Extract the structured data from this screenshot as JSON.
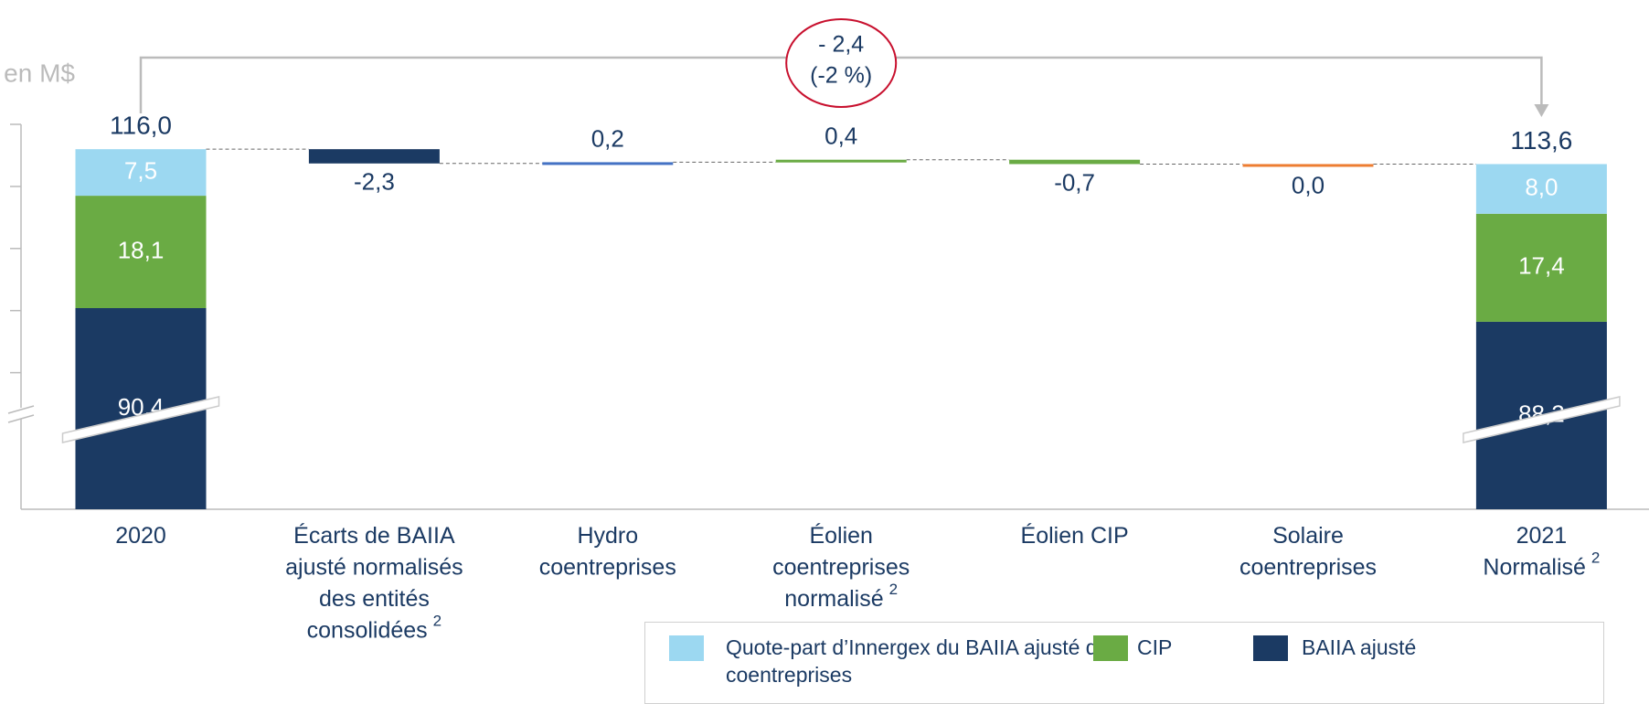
{
  "chart_data": {
    "type": "waterfall",
    "unit_label": "en M$",
    "categories": [
      [
        "2020"
      ],
      [
        "Écarts de BAIIA",
        "ajusté normalisés",
        "des entités",
        "consolidées"
      ],
      [
        "Hydro",
        "coentreprises"
      ],
      [
        "Éolien",
        "coentreprises",
        "normalisé"
      ],
      [
        "Éolien CIP"
      ],
      [
        "Solaire",
        "coentreprises"
      ],
      [
        "2021",
        "Normalisé"
      ]
    ],
    "category_notes": [
      null,
      "2",
      null,
      "2",
      null,
      null,
      "2"
    ],
    "series": [
      {
        "name": "BAIIA ajusté",
        "color": "#1b3a63",
        "values": [
          90.4,
          null,
          null,
          null,
          null,
          null,
          88.2
        ],
        "value_labels": [
          "90,4",
          null,
          null,
          null,
          null,
          null,
          "88,2"
        ]
      },
      {
        "name": "CIP",
        "color": "#6aab44",
        "values": [
          18.1,
          null,
          null,
          null,
          null,
          null,
          17.4
        ],
        "value_labels": [
          "18,1",
          null,
          null,
          null,
          null,
          null,
          "17,4"
        ]
      },
      {
        "name": "Quote-part d’Innergex du BAIIA ajusté des coentreprises",
        "color": "#9cd8f1",
        "values": [
          7.5,
          null,
          null,
          null,
          null,
          null,
          8.0
        ],
        "value_labels": [
          "7,5",
          null,
          null,
          null,
          null,
          null,
          "8,0"
        ]
      }
    ],
    "totals": {
      "values": [
        116.0,
        null,
        null,
        null,
        null,
        null,
        113.6
      ],
      "value_labels": [
        "116,0",
        null,
        null,
        null,
        null,
        null,
        "113,6"
      ]
    },
    "changes": {
      "values": [
        null,
        -2.3,
        0.2,
        0.4,
        -0.7,
        0.0,
        null
      ],
      "value_labels": [
        null,
        "-2,3",
        "0,2",
        "0,4",
        "-0,7",
        "0,0",
        null
      ],
      "colors": [
        null,
        "#1b3a63",
        "#4472c4",
        "#6aab44",
        "#6aab44",
        "#ed7d31",
        null
      ]
    },
    "annotation": {
      "lines": [
        "- 2,4",
        "(-2 %)"
      ]
    },
    "ylim": [
      58,
      120
    ],
    "yticks": [
      120,
      110,
      100,
      90,
      80
    ]
  }
}
